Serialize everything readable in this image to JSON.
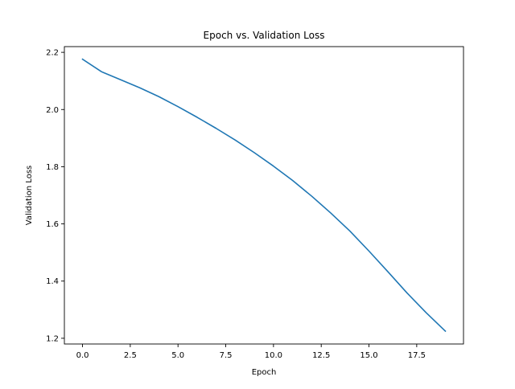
{
  "chart_data": {
    "type": "line",
    "title": "Epoch vs. Validation Loss",
    "xlabel": "Epoch",
    "ylabel": "Validation Loss",
    "xlim": [
      -0.95,
      19.95
    ],
    "ylim": [
      1.18,
      2.22
    ],
    "xticks": [
      0,
      2.5,
      5,
      7.5,
      10,
      12.5,
      15,
      17.5
    ],
    "xtick_labels": [
      "0.0",
      "2.5",
      "5.0",
      "7.5",
      "10.0",
      "12.5",
      "15.0",
      "17.5"
    ],
    "yticks": [
      1.2,
      1.4,
      1.6,
      1.8,
      2.0,
      2.2
    ],
    "ytick_labels": [
      "1.2",
      "1.4",
      "1.6",
      "1.8",
      "2.0",
      "2.2"
    ],
    "grid": false,
    "series": [
      {
        "color": "#1f77b4",
        "x": [
          0,
          1,
          2,
          3,
          4,
          5,
          6,
          7,
          8,
          9,
          10,
          11,
          12,
          13,
          14,
          15,
          16,
          17,
          18,
          19
        ],
        "values": [
          2.176,
          2.132,
          2.104,
          2.076,
          2.045,
          2.01,
          1.973,
          1.934,
          1.893,
          1.849,
          1.802,
          1.752,
          1.697,
          1.638,
          1.575,
          1.505,
          1.432,
          1.358,
          1.289,
          1.225
        ]
      }
    ]
  }
}
